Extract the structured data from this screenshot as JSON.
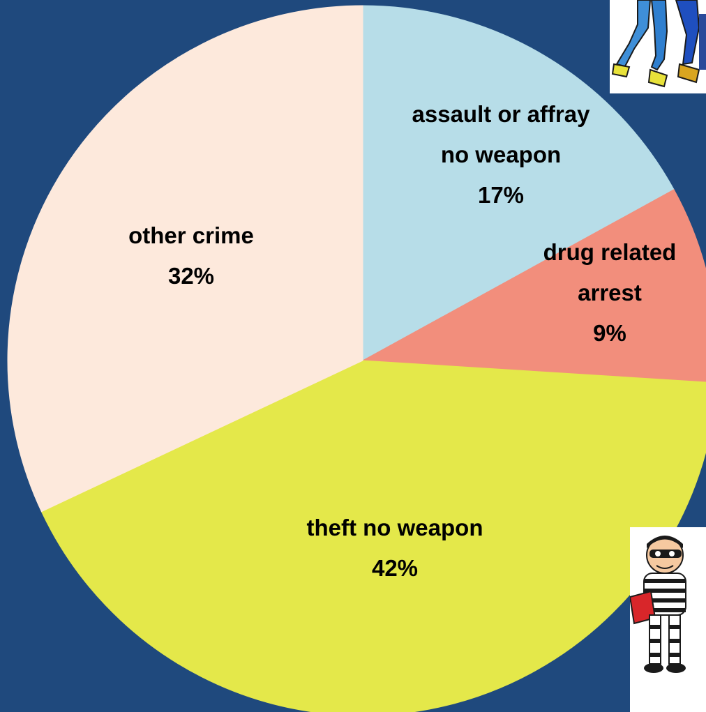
{
  "chart_data": {
    "type": "pie",
    "title": "",
    "slices": [
      {
        "label": "assault or affray\nno weapon",
        "value": 17,
        "pct_label": "17%",
        "color": "#b7dde8"
      },
      {
        "label": "drug related\narrest",
        "value": 9,
        "pct_label": "9%",
        "color": "#f28e7c"
      },
      {
        "label": "theft no weapon",
        "value": 42,
        "pct_label": "42%",
        "color": "#e4e84a"
      },
      {
        "label": "other crime",
        "value": 32,
        "pct_label": "32%",
        "color": "#fde9dc"
      }
    ],
    "start": "12 o'clock",
    "direction": "clockwise",
    "legend": "none",
    "data_labels": "inside"
  },
  "colors": {
    "background": "#1f497d"
  },
  "decorations": {
    "top_right": "running-figures-clipart",
    "bottom_right": "burglar-clipart"
  }
}
